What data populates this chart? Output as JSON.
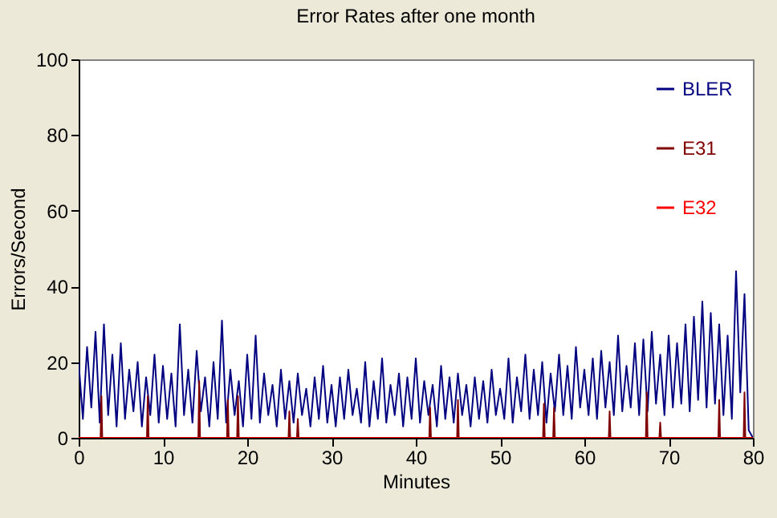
{
  "chart_data": {
    "type": "line",
    "title": "Error Rates after one month",
    "xlabel": "Minutes",
    "ylabel": "Errors/Second",
    "xlim": [
      0,
      80
    ],
    "xticks": [
      0,
      10,
      20,
      30,
      40,
      50,
      60,
      70,
      80
    ],
    "ylim": [
      0,
      100
    ],
    "yticks": [
      0,
      20,
      40,
      60,
      80,
      100
    ],
    "grid": false,
    "legend": "top right",
    "marker": "none",
    "line_style": "solid",
    "series": [
      {
        "name": "BLER",
        "color": "#000080",
        "x": [
          0,
          0.5,
          1,
          1.5,
          2,
          2.5,
          3,
          3.5,
          4,
          4.5,
          5,
          5.5,
          6,
          6.5,
          7,
          7.5,
          8,
          8.5,
          9,
          9.5,
          10,
          10.5,
          11,
          11.5,
          12,
          12.5,
          13,
          13.5,
          14,
          14.5,
          15,
          15.5,
          16,
          16.5,
          17,
          17.5,
          18,
          18.5,
          19,
          19.5,
          20,
          20.5,
          21,
          21.5,
          22,
          22.5,
          23,
          23.5,
          24,
          24.5,
          25,
          25.5,
          26,
          26.5,
          27,
          27.5,
          28,
          28.5,
          29,
          29.5,
          30,
          30.5,
          31,
          31.5,
          32,
          32.5,
          33,
          33.5,
          34,
          34.5,
          35,
          35.5,
          36,
          36.5,
          37,
          37.5,
          38,
          38.5,
          39,
          39.5,
          40,
          40.5,
          41,
          41.5,
          42,
          42.5,
          43,
          43.5,
          44,
          44.5,
          45,
          45.5,
          46,
          46.5,
          47,
          47.5,
          48,
          48.5,
          49,
          49.5,
          50,
          50.5,
          51,
          51.5,
          52,
          52.5,
          53,
          53.5,
          54,
          54.5,
          55,
          55.5,
          56,
          56.5,
          57,
          57.5,
          58,
          58.5,
          59,
          59.5,
          60,
          60.5,
          61,
          61.5,
          62,
          62.5,
          63,
          63.5,
          64,
          64.5,
          65,
          65.5,
          66,
          66.5,
          67,
          67.5,
          68,
          68.5,
          69,
          69.5,
          70,
          70.5,
          71,
          71.5,
          72,
          72.5,
          73,
          73.5,
          74,
          74.5,
          75,
          75.5,
          76,
          76.5,
          77,
          77.5,
          78,
          78.5,
          79,
          79.5,
          80
        ],
        "values": [
          20,
          5,
          24,
          8,
          28,
          4,
          30,
          6,
          22,
          3,
          25,
          5,
          18,
          7,
          20,
          3,
          16,
          6,
          22,
          4,
          19,
          5,
          17,
          3,
          30,
          6,
          18,
          4,
          23,
          7,
          16,
          3,
          20,
          5,
          31,
          4,
          18,
          6,
          15,
          3,
          22,
          5,
          27,
          4,
          17,
          6,
          14,
          3,
          18,
          5,
          15,
          4,
          17,
          6,
          13,
          3,
          16,
          5,
          19,
          4,
          14,
          3,
          16,
          5,
          18,
          6,
          13,
          4,
          20,
          3,
          15,
          5,
          21,
          4,
          14,
          6,
          17,
          3,
          16,
          5,
          21,
          4,
          15,
          6,
          14,
          3,
          19,
          5,
          16,
          4,
          17,
          6,
          14,
          3,
          16,
          5,
          15,
          4,
          18,
          6,
          13,
          5,
          21,
          4,
          16,
          7,
          22,
          5,
          18,
          6,
          20,
          4,
          17,
          7,
          22,
          6,
          19,
          5,
          24,
          8,
          18,
          6,
          21,
          5,
          23,
          8,
          20,
          6,
          27,
          7,
          19,
          8,
          25,
          6,
          26,
          7,
          28,
          9,
          22,
          6,
          27,
          8,
          25,
          9,
          30,
          7,
          32,
          10,
          36,
          8,
          33,
          9,
          30,
          6,
          27,
          5,
          44,
          12,
          38,
          2,
          0
        ]
      },
      {
        "name": "E31",
        "color": "#800000",
        "x": [
          0,
          2.6,
          2.7,
          2.8,
          8.1,
          8.2,
          8.3,
          14.2,
          14.3,
          14.4,
          17.6,
          17.7,
          17.8,
          18.8,
          18.9,
          19,
          24.9,
          25,
          25.1,
          25.9,
          26,
          26.1,
          41.6,
          41.7,
          41.8,
          44.9,
          45,
          45.1,
          55.1,
          55.2,
          55.3,
          56.3,
          56.4,
          56.5,
          62.9,
          63,
          63.1,
          67.3,
          67.4,
          67.5,
          68.9,
          69,
          69.1,
          75.9,
          76,
          76.1,
          78.9,
          79,
          79.1,
          80
        ],
        "values": [
          0,
          0,
          11,
          0,
          0,
          11,
          0,
          0,
          15,
          0,
          0,
          10,
          0,
          0,
          11,
          0,
          0,
          7,
          0,
          0,
          5,
          0,
          0,
          8,
          0,
          0,
          10,
          0,
          0,
          9,
          0,
          0,
          8,
          0,
          0,
          7,
          0,
          0,
          12,
          0,
          0,
          4,
          0,
          0,
          10,
          0,
          0,
          12,
          0,
          0
        ]
      },
      {
        "name": "E32",
        "color": "#ff0000",
        "x": [
          0,
          80
        ],
        "values": [
          0,
          0
        ]
      }
    ]
  }
}
